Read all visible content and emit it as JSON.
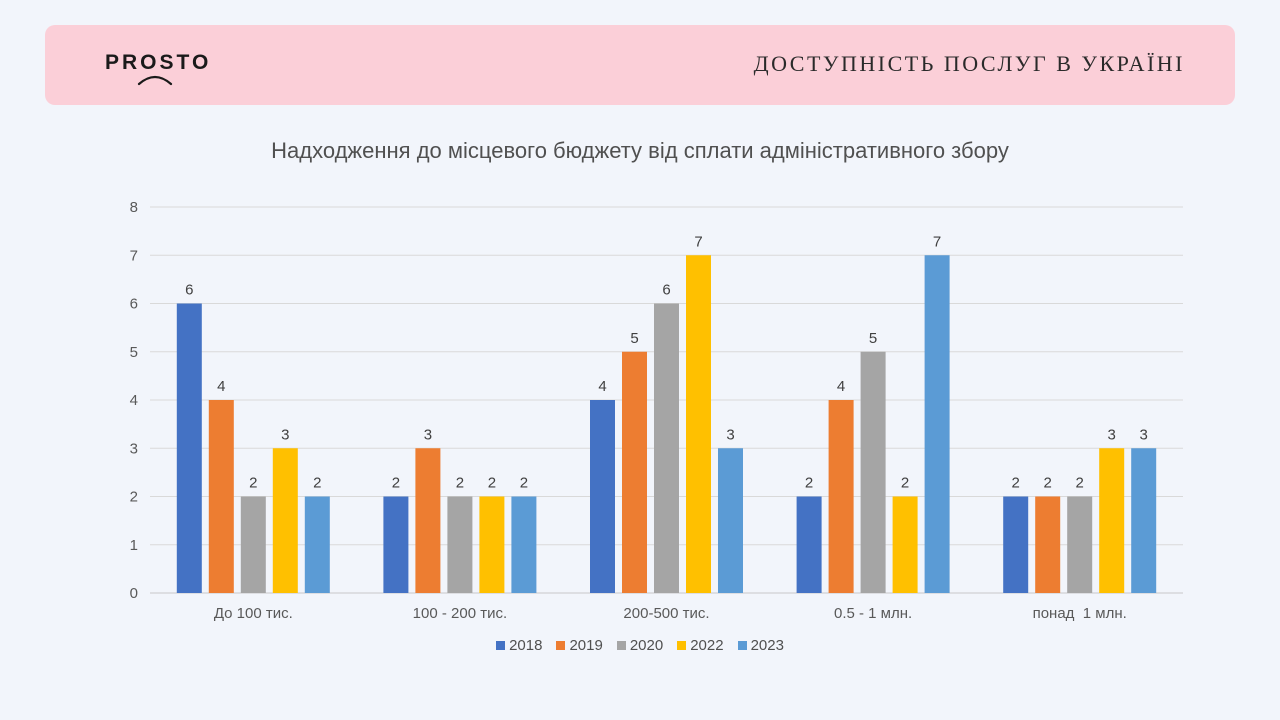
{
  "header": {
    "logo": "PROSTO",
    "title": "ДОСТУПНІСТЬ ПОСЛУГ В УКРАЇНІ",
    "background": "#fbcfd8"
  },
  "chart_data": {
    "type": "bar",
    "title": "Надходження до місцевого бюджету від сплати адміністративного збору",
    "xlabel": "",
    "ylabel": "",
    "ylim": [
      0,
      8
    ],
    "yticks": [
      0,
      1,
      2,
      3,
      4,
      5,
      6,
      7,
      8
    ],
    "grid": true,
    "legend_position": "bottom",
    "categories": [
      "До 100 тис.",
      "100 - 200 тис.",
      "200-500 тис.",
      "0.5 - 1 млн.",
      "понад  1 млн."
    ],
    "series": [
      {
        "name": "2018",
        "color": "#4472c4",
        "values": [
          6,
          2,
          4,
          2,
          2
        ]
      },
      {
        "name": "2019",
        "color": "#ed7d31",
        "values": [
          4,
          3,
          5,
          4,
          2
        ]
      },
      {
        "name": "2020",
        "color": "#a5a5a5",
        "values": [
          2,
          2,
          6,
          5,
          2
        ]
      },
      {
        "name": "2022",
        "color": "#ffc000",
        "values": [
          3,
          2,
          7,
          2,
          3
        ]
      },
      {
        "name": "2023",
        "color": "#5b9bd5",
        "values": [
          2,
          2,
          3,
          7,
          3
        ]
      }
    ]
  }
}
